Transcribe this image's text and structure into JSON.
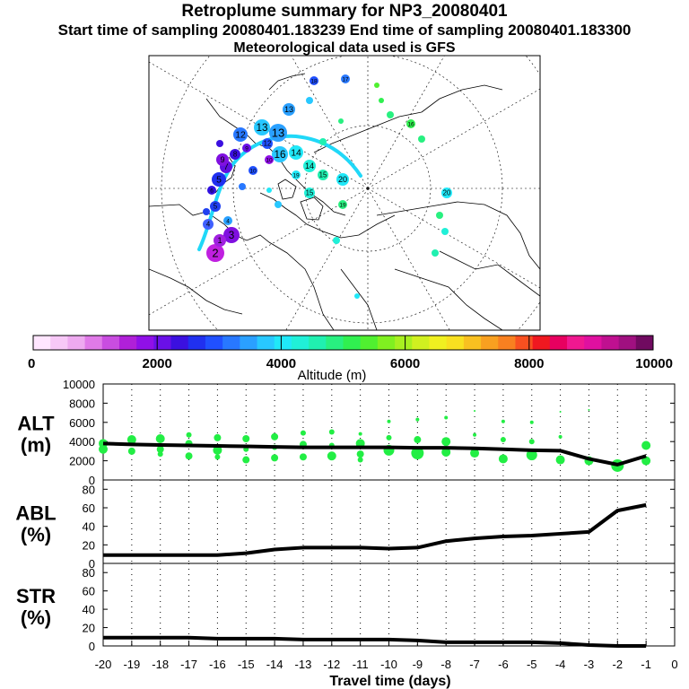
{
  "header": {
    "title": "Retroplume summary for NP3_20080401",
    "sampling_line": "Start time of sampling 20080401.183239     End time of sampling 20080401.183300",
    "meteo_line": "Meteorological data used is GFS"
  },
  "colorbar": {
    "label": "Altitude (m)",
    "ticks": [
      "0",
      "2000",
      "4000",
      "6000",
      "8000",
      "10000"
    ],
    "colors": [
      "#ffe6ff",
      "#f7c8f7",
      "#eeaaf0",
      "#e07ae8",
      "#c94de0",
      "#b020d8",
      "#9010e8",
      "#6a10e8",
      "#3b10e0",
      "#2030f0",
      "#2050ff",
      "#2878ff",
      "#2aa0ff",
      "#28c8ff",
      "#20e8f8",
      "#20f0d8",
      "#20f0b0",
      "#28f080",
      "#30f050",
      "#50f030",
      "#80f020",
      "#a8f020",
      "#d0f020",
      "#f0f020",
      "#f8e020",
      "#f8c020",
      "#f8a020",
      "#f88020",
      "#f85020",
      "#f01820",
      "#e80060",
      "#f01890",
      "#e010a0",
      "#c01090",
      "#a01080",
      "#700a60"
    ]
  },
  "map": {
    "labels": [
      "2",
      "3",
      "1",
      "4",
      "5",
      "6",
      "7",
      "8",
      "9",
      "10",
      "11",
      "12",
      "13",
      "14",
      "15",
      "16",
      "17",
      "18",
      "19",
      "20"
    ],
    "trajectory_color": "#20d8f8"
  },
  "chart_data": [
    {
      "type": "line",
      "name": "ALT",
      "ylabel": "ALT\n(m)",
      "ylabel_line1": "ALT",
      "ylabel_line2": "(m)",
      "ylim": [
        0,
        10000
      ],
      "yticks": [
        "0",
        "2000",
        "4000",
        "6000",
        "8000",
        "10000"
      ],
      "x": [
        -20,
        -19,
        -18,
        -17,
        -16,
        -15,
        -14,
        -13,
        -12,
        -11,
        -10,
        -9,
        -8,
        -7,
        -6,
        -5,
        -4,
        -3,
        -2,
        -1
      ],
      "values": [
        3800,
        3700,
        3650,
        3600,
        3550,
        3500,
        3450,
        3400,
        3400,
        3400,
        3400,
        3350,
        3350,
        3300,
        3200,
        3100,
        3050,
        2200,
        1600,
        2500
      ],
      "scatter_points": [
        [
          -20,
          3800,
          5
        ],
        [
          -20,
          3200,
          5
        ],
        [
          -19,
          4200,
          5
        ],
        [
          -19,
          3000,
          4
        ],
        [
          -18,
          4300,
          5
        ],
        [
          -18,
          3200,
          4
        ],
        [
          -18,
          2700,
          3
        ],
        [
          -17,
          4700,
          3
        ],
        [
          -17,
          3800,
          4
        ],
        [
          -17,
          2500,
          4
        ],
        [
          -16,
          4400,
          4
        ],
        [
          -16,
          3100,
          5
        ],
        [
          -16,
          2400,
          3
        ],
        [
          -15,
          4300,
          4
        ],
        [
          -15,
          3200,
          3
        ],
        [
          -15,
          2100,
          4
        ],
        [
          -14,
          4500,
          4
        ],
        [
          -14,
          3400,
          3
        ],
        [
          -14,
          2300,
          4
        ],
        [
          -13,
          4900,
          3
        ],
        [
          -13,
          3700,
          4
        ],
        [
          -13,
          2400,
          4
        ],
        [
          -12,
          5000,
          3
        ],
        [
          -12,
          3600,
          3
        ],
        [
          -12,
          2500,
          5
        ],
        [
          -11,
          4800,
          2
        ],
        [
          -11,
          3800,
          5
        ],
        [
          -11,
          2700,
          4
        ],
        [
          -11,
          2100,
          3
        ],
        [
          -10,
          6100,
          2
        ],
        [
          -10,
          4400,
          3
        ],
        [
          -10,
          3100,
          6
        ],
        [
          -9,
          6300,
          2
        ],
        [
          -9,
          4200,
          4
        ],
        [
          -9,
          2800,
          7
        ],
        [
          -8,
          6500,
          2
        ],
        [
          -8,
          4000,
          5
        ],
        [
          -8,
          2900,
          5
        ],
        [
          -7,
          7200,
          1
        ],
        [
          -7,
          4700,
          2
        ],
        [
          -7,
          2800,
          5
        ],
        [
          -6,
          6100,
          2
        ],
        [
          -6,
          4200,
          3
        ],
        [
          -6,
          2200,
          5
        ],
        [
          -5,
          6000,
          2
        ],
        [
          -5,
          4000,
          3
        ],
        [
          -5,
          2600,
          6
        ],
        [
          -4,
          7100,
          1
        ],
        [
          -4,
          4500,
          2
        ],
        [
          -4,
          2100,
          5
        ],
        [
          -3,
          7300,
          1
        ],
        [
          -3,
          2000,
          5
        ],
        [
          -2,
          1500,
          7
        ],
        [
          -1,
          3600,
          5
        ],
        [
          -1,
          2000,
          5
        ]
      ]
    },
    {
      "type": "line",
      "name": "ABL",
      "ylabel": "ABL\n(%)",
      "ylabel_line1": "ABL",
      "ylabel_line2": "(%)",
      "ylim": [
        0,
        90
      ],
      "yticks": [
        "0",
        "20",
        "40",
        "60",
        "80"
      ],
      "x": [
        -20,
        -19,
        -18,
        -17,
        -16,
        -15,
        -14,
        -13,
        -12,
        -11,
        -10,
        -9,
        -8,
        -7,
        -6,
        -5,
        -4,
        -3,
        -2,
        -1
      ],
      "values": [
        9,
        9,
        9,
        9,
        9,
        11,
        15,
        17,
        17,
        17,
        16,
        17,
        24,
        27,
        29,
        30,
        32,
        34,
        57,
        63
      ]
    },
    {
      "type": "line",
      "name": "STR",
      "ylabel": "STR\n(%)",
      "ylabel_line1": "STR",
      "ylabel_line2": "(%)",
      "ylim": [
        0,
        90
      ],
      "yticks": [
        "0",
        "20",
        "40",
        "60",
        "80"
      ],
      "x": [
        -20,
        -19,
        -18,
        -17,
        -16,
        -15,
        -14,
        -13,
        -12,
        -11,
        -10,
        -9,
        -8,
        -7,
        -6,
        -5,
        -4,
        -3,
        -2,
        -1
      ],
      "values": [
        9,
        9,
        9,
        9,
        8,
        8,
        8,
        7,
        7,
        7,
        7,
        6,
        4,
        4,
        4,
        4,
        3,
        1,
        0,
        0
      ]
    }
  ],
  "xaxis": {
    "label": "Travel time (days)",
    "ticks": [
      "-20",
      "-19",
      "-18",
      "-17",
      "-16",
      "-15",
      "-14",
      "-13",
      "-12",
      "-11",
      "-10",
      "-9",
      "-8",
      "-7",
      "-6",
      "-5",
      "-4",
      "-3",
      "-2",
      "-1",
      "0"
    ]
  },
  "series_colors": {
    "line": "#000000",
    "marker": "#22ee44"
  }
}
